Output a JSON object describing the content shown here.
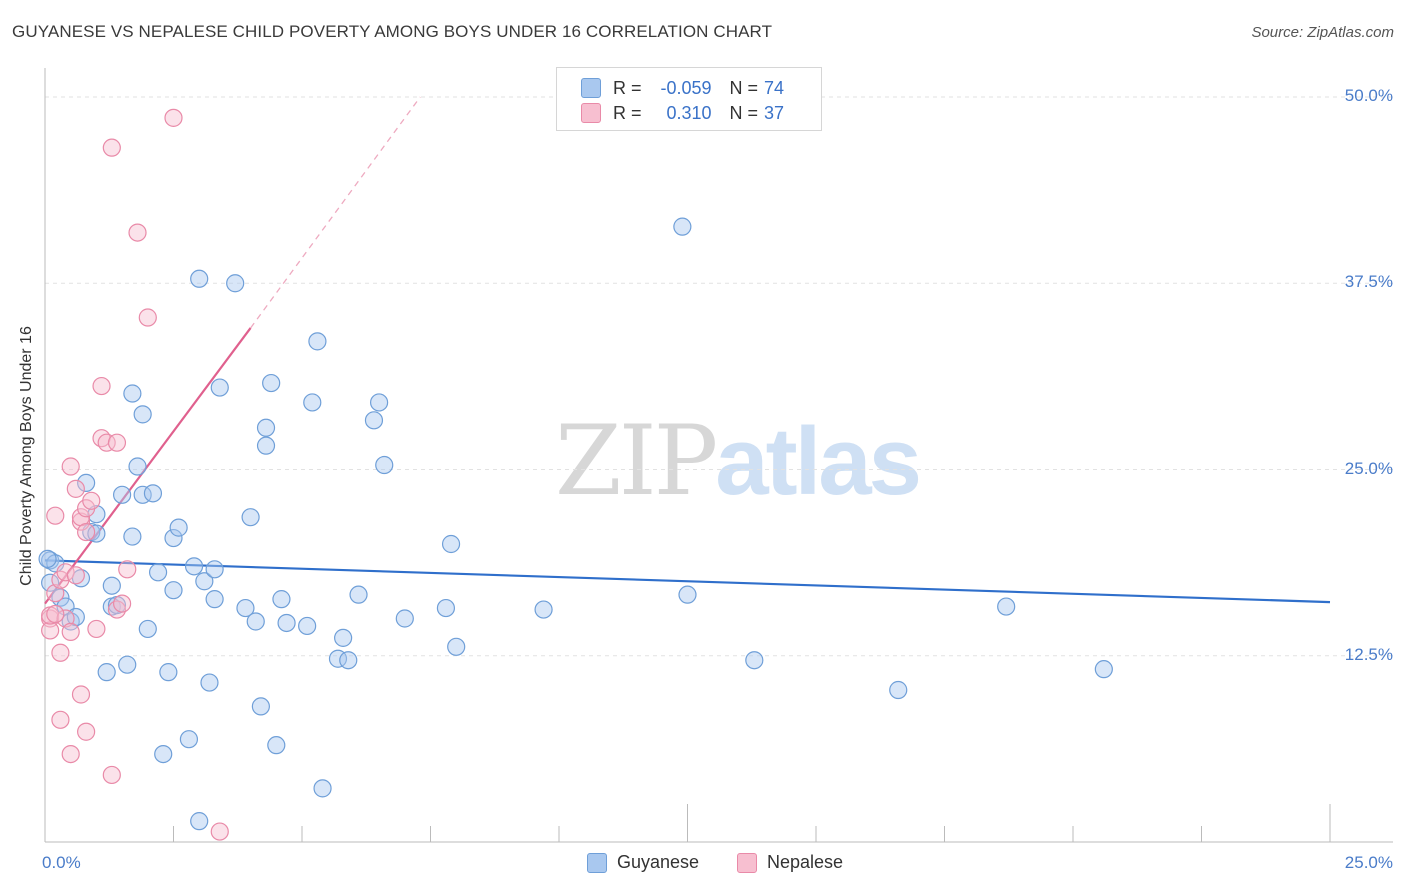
{
  "header": {
    "title": "GUYANESE VS NEPALESE CHILD POVERTY AMONG BOYS UNDER 16 CORRELATION CHART",
    "source": "Source: ZipAtlas.com"
  },
  "watermark": {
    "zip": "ZIP",
    "atlas": "atlas"
  },
  "stats": {
    "r_label": "R =",
    "n_label": "N =",
    "guyanese": {
      "r": "-0.059",
      "n": "74"
    },
    "nepalese": {
      "r": "0.310",
      "n": "37"
    }
  },
  "axis": {
    "y_title": "Child Poverty Among Boys Under 16",
    "x_min_label": "0.0%",
    "x_max_label": "25.0%",
    "y_ticks": [
      "12.5%",
      "25.0%",
      "37.5%",
      "50.0%"
    ]
  },
  "legend": {
    "guyanese": "Guyanese",
    "nepalese": "Nepalese"
  },
  "colors": {
    "guyanese_fill": "#a9c8ef",
    "guyanese_stroke": "#6f9fd8",
    "guyanese_line": "#2f6fcb",
    "nepalese_fill": "#f7bfd0",
    "nepalese_stroke": "#e98aa8",
    "nepalese_line": "#e0608e",
    "tick_text": "#4a7cc9",
    "grid": "#e2e2e2"
  },
  "chart_data": {
    "type": "scatter",
    "title": "GUYANESE VS NEPALESE CHILD POVERTY AMONG BOYS UNDER 16 CORRELATION CHART",
    "xlabel": "",
    "ylabel": "Child Poverty Among Boys Under 16",
    "xlim": [
      0,
      25
    ],
    "ylim": [
      0,
      50
    ],
    "x_unit": "%",
    "y_unit": "%",
    "y_ticks": [
      12.5,
      25.0,
      37.5,
      50.0
    ],
    "grid": true,
    "legend_position": "bottom-center",
    "series": [
      {
        "name": "Guyanese",
        "r": -0.059,
        "n": 74,
        "trend": {
          "x": [
            0,
            25
          ],
          "y": [
            18.9,
            16.1
          ],
          "extends_dashed": false
        },
        "points": [
          [
            0.1,
            18.9
          ],
          [
            0.1,
            17.4
          ],
          [
            0.2,
            18.7
          ],
          [
            0.3,
            16.4
          ],
          [
            0.4,
            15.8
          ],
          [
            0.5,
            14.8
          ],
          [
            0.6,
            15.1
          ],
          [
            0.7,
            17.7
          ],
          [
            0.8,
            24.1
          ],
          [
            0.9,
            20.8
          ],
          [
            1.0,
            22.0
          ],
          [
            1.0,
            20.7
          ],
          [
            1.2,
            11.4
          ],
          [
            1.3,
            15.8
          ],
          [
            1.3,
            17.2
          ],
          [
            1.4,
            15.9
          ],
          [
            1.5,
            23.3
          ],
          [
            1.6,
            11.9
          ],
          [
            1.7,
            20.5
          ],
          [
            1.7,
            30.1
          ],
          [
            1.8,
            25.2
          ],
          [
            1.9,
            23.3
          ],
          [
            1.9,
            28.7
          ],
          [
            2.0,
            14.3
          ],
          [
            2.1,
            23.4
          ],
          [
            2.2,
            18.1
          ],
          [
            2.3,
            5.9
          ],
          [
            2.4,
            11.4
          ],
          [
            2.5,
            20.4
          ],
          [
            2.5,
            16.9
          ],
          [
            2.6,
            21.1
          ],
          [
            2.8,
            6.9
          ],
          [
            2.9,
            18.5
          ],
          [
            3.0,
            37.8
          ],
          [
            3.0,
            1.4
          ],
          [
            3.1,
            17.5
          ],
          [
            3.2,
            10.7
          ],
          [
            3.3,
            16.3
          ],
          [
            3.3,
            18.3
          ],
          [
            3.4,
            30.5
          ],
          [
            3.7,
            37.5
          ],
          [
            3.9,
            15.7
          ],
          [
            4.0,
            21.8
          ],
          [
            4.1,
            14.8
          ],
          [
            4.2,
            9.1
          ],
          [
            4.3,
            26.6
          ],
          [
            4.3,
            27.8
          ],
          [
            4.4,
            30.8
          ],
          [
            4.5,
            6.5
          ],
          [
            4.6,
            16.3
          ],
          [
            4.7,
            14.7
          ],
          [
            5.1,
            14.5
          ],
          [
            5.2,
            29.5
          ],
          [
            5.3,
            33.6
          ],
          [
            5.4,
            3.6
          ],
          [
            5.7,
            12.3
          ],
          [
            5.8,
            13.7
          ],
          [
            5.9,
            12.2
          ],
          [
            6.1,
            16.6
          ],
          [
            6.4,
            28.3
          ],
          [
            6.5,
            29.5
          ],
          [
            6.6,
            25.3
          ],
          [
            7.0,
            15.0
          ],
          [
            7.8,
            15.7
          ],
          [
            7.9,
            20.0
          ],
          [
            8.0,
            13.1
          ],
          [
            9.7,
            15.6
          ],
          [
            12.4,
            41.3
          ],
          [
            12.5,
            16.6
          ],
          [
            13.8,
            12.2
          ],
          [
            16.6,
            10.2
          ],
          [
            18.7,
            15.8
          ],
          [
            20.6,
            11.6
          ],
          [
            0.05,
            19.0
          ]
        ]
      },
      {
        "name": "Nepalese",
        "r": 0.31,
        "n": 37,
        "trend": {
          "x": [
            0,
            4
          ],
          "y": [
            16.0,
            34.5
          ],
          "dashed_to": [
            7.3,
            50.0
          ]
        },
        "points": [
          [
            0.1,
            15.0
          ],
          [
            0.1,
            14.2
          ],
          [
            0.1,
            15.2
          ],
          [
            0.2,
            21.9
          ],
          [
            0.2,
            16.7
          ],
          [
            0.3,
            17.6
          ],
          [
            0.3,
            8.2
          ],
          [
            0.3,
            12.7
          ],
          [
            0.4,
            18.1
          ],
          [
            0.4,
            15.0
          ],
          [
            0.5,
            14.1
          ],
          [
            0.5,
            25.2
          ],
          [
            0.5,
            5.9
          ],
          [
            0.6,
            23.7
          ],
          [
            0.7,
            21.5
          ],
          [
            0.7,
            21.8
          ],
          [
            0.7,
            9.9
          ],
          [
            0.8,
            22.4
          ],
          [
            0.8,
            7.4
          ],
          [
            0.8,
            20.8
          ],
          [
            0.9,
            22.9
          ],
          [
            1.0,
            14.3
          ],
          [
            1.1,
            27.1
          ],
          [
            1.1,
            30.6
          ],
          [
            1.2,
            26.8
          ],
          [
            1.3,
            46.6
          ],
          [
            1.3,
            4.5
          ],
          [
            1.4,
            15.6
          ],
          [
            1.4,
            26.8
          ],
          [
            1.6,
            18.3
          ],
          [
            1.8,
            40.9
          ],
          [
            2.0,
            35.2
          ],
          [
            2.5,
            48.6
          ],
          [
            3.4,
            0.7
          ],
          [
            0.2,
            15.3
          ],
          [
            0.6,
            17.9
          ],
          [
            1.5,
            16.0
          ]
        ]
      }
    ]
  }
}
